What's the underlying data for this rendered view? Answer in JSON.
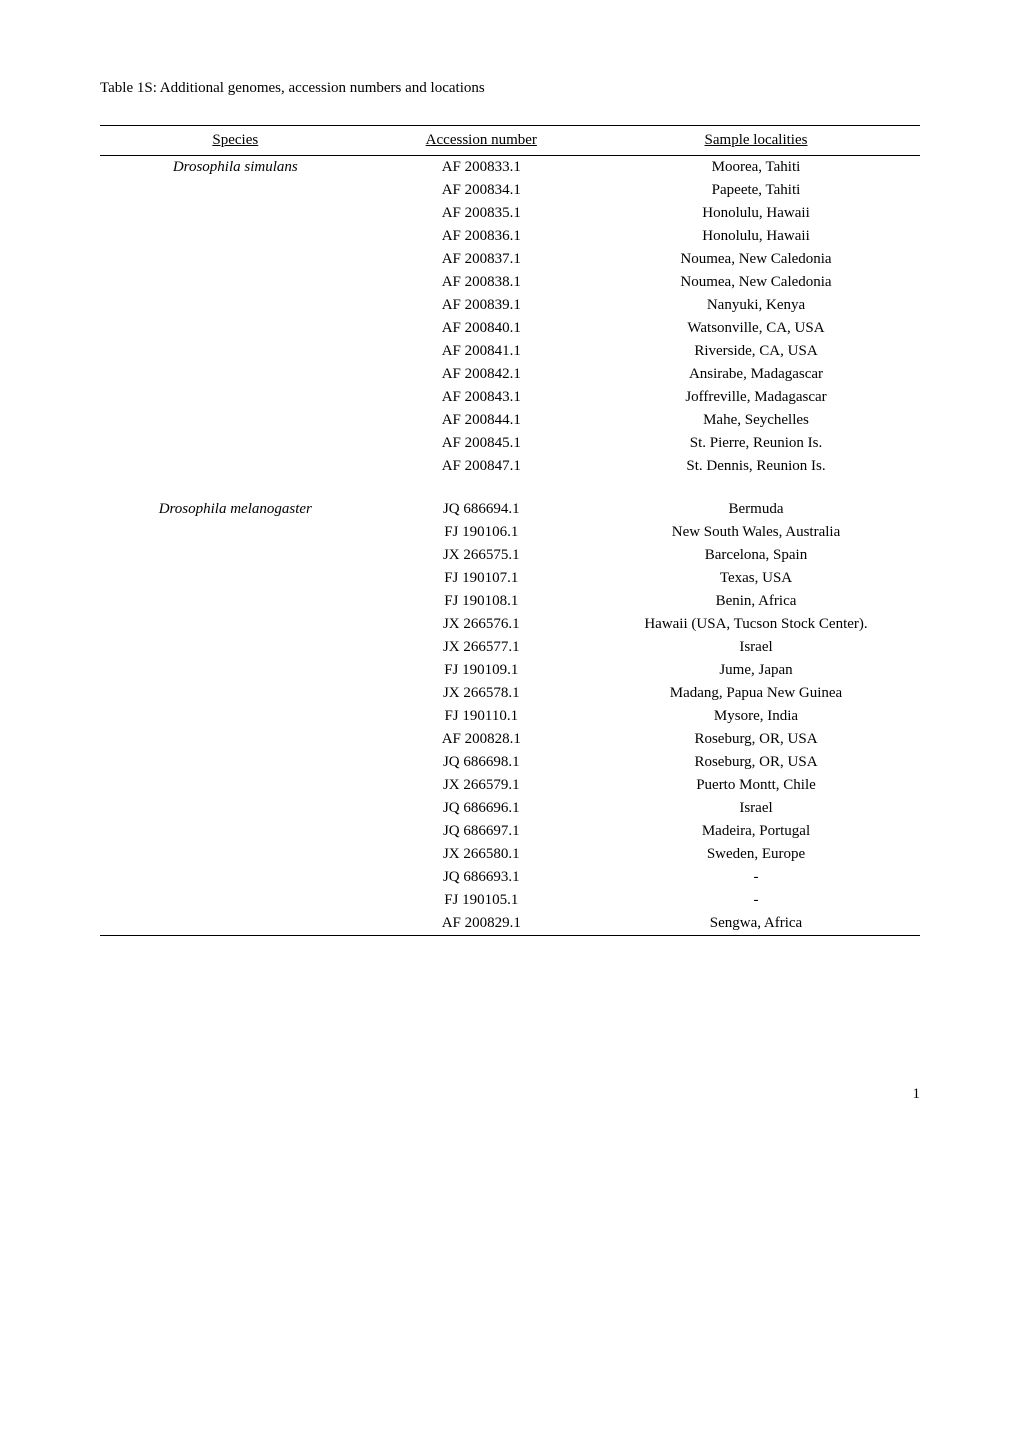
{
  "caption": "Table 1S: Additional genomes, accession numbers and locations",
  "columns": [
    "Species",
    "Accession number",
    "Sample localities"
  ],
  "col_widths": [
    "33%",
    "27%",
    "40%"
  ],
  "groups": [
    {
      "species": "Drosophila simulans",
      "rows": [
        {
          "acc": "AF 200833.1",
          "loc": "Moorea, Tahiti"
        },
        {
          "acc": "AF 200834.1",
          "loc": "Papeete, Tahiti"
        },
        {
          "acc": "AF 200835.1",
          "loc": "Honolulu, Hawaii"
        },
        {
          "acc": "AF 200836.1",
          "loc": "Honolulu, Hawaii"
        },
        {
          "acc": "AF 200837.1",
          "loc": "Noumea, New Caledonia"
        },
        {
          "acc": "AF 200838.1",
          "loc": "Noumea, New Caledonia"
        },
        {
          "acc": "AF 200839.1",
          "loc": "Nanyuki, Kenya"
        },
        {
          "acc": "AF 200840.1",
          "loc": "Watsonville, CA, USA"
        },
        {
          "acc": "AF 200841.1",
          "loc": "Riverside, CA, USA"
        },
        {
          "acc": "AF 200842.1",
          "loc": "Ansirabe, Madagascar"
        },
        {
          "acc": "AF 200843.1",
          "loc": "Joffreville, Madagascar"
        },
        {
          "acc": "AF 200844.1",
          "loc": "Mahe, Seychelles"
        },
        {
          "acc": "AF 200845.1",
          "loc": "St. Pierre, Reunion Is."
        },
        {
          "acc": "AF 200847.1",
          "loc": "St. Dennis, Reunion Is."
        }
      ]
    },
    {
      "species": "Drosophila melanogaster",
      "rows": [
        {
          "acc": "JQ 686694.1",
          "loc": "Bermuda"
        },
        {
          "acc": "FJ 190106.1",
          "loc": "New South Wales, Australia"
        },
        {
          "acc": "JX 266575.1",
          "loc": "Barcelona, Spain"
        },
        {
          "acc": "FJ 190107.1",
          "loc": "Texas, USA"
        },
        {
          "acc": "FJ 190108.1",
          "loc": "Benin, Africa"
        },
        {
          "acc": "JX 266576.1",
          "loc": "Hawaii (USA, Tucson Stock Center)."
        },
        {
          "acc": "JX 266577.1",
          "loc": "Israel"
        },
        {
          "acc": "FJ 190109.1",
          "loc": "Jume, Japan"
        },
        {
          "acc": "JX 266578.1",
          "loc": "Madang, Papua New Guinea"
        },
        {
          "acc": "FJ 190110.1",
          "loc": "Mysore, India"
        },
        {
          "acc": "AF 200828.1",
          "loc": "Roseburg, OR, USA"
        },
        {
          "acc": "JQ 686698.1",
          "loc": "Roseburg, OR, USA"
        },
        {
          "acc": "JX 266579.1",
          "loc": "Puerto Montt, Chile"
        },
        {
          "acc": "JQ 686696.1",
          "loc": "Israel"
        },
        {
          "acc": "JQ 686697.1",
          "loc": "Madeira, Portugal"
        },
        {
          "acc": "JX 266580.1",
          "loc": "Sweden, Europe"
        },
        {
          "acc": "JQ 686693.1",
          "loc": "-"
        },
        {
          "acc": "FJ 190105.1",
          "loc": "-"
        },
        {
          "acc": "AF 200829.1",
          "loc": "Sengwa, Africa"
        }
      ]
    }
  ],
  "page_number": "1"
}
